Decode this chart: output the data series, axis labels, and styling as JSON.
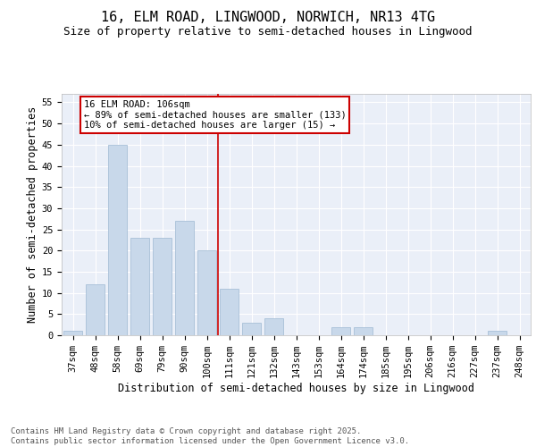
{
  "title_line1": "16, ELM ROAD, LINGWOOD, NORWICH, NR13 4TG",
  "title_line2": "Size of property relative to semi-detached houses in Lingwood",
  "xlabel": "Distribution of semi-detached houses by size in Lingwood",
  "ylabel": "Number of semi-detached properties",
  "categories": [
    "37sqm",
    "48sqm",
    "58sqm",
    "69sqm",
    "79sqm",
    "90sqm",
    "100sqm",
    "111sqm",
    "121sqm",
    "132sqm",
    "143sqm",
    "153sqm",
    "164sqm",
    "174sqm",
    "185sqm",
    "195sqm",
    "206sqm",
    "216sqm",
    "227sqm",
    "237sqm",
    "248sqm"
  ],
  "values": [
    1,
    12,
    45,
    23,
    23,
    27,
    20,
    11,
    3,
    4,
    0,
    0,
    2,
    2,
    0,
    0,
    0,
    0,
    0,
    1,
    0
  ],
  "bar_color": "#c8d8ea",
  "bar_edge_color": "#a8c0d8",
  "vline_x_index": 7,
  "vline_color": "#cc0000",
  "annotation_text": "16 ELM ROAD: 106sqm\n← 89% of semi-detached houses are smaller (133)\n10% of semi-detached houses are larger (15) →",
  "annotation_box_color": "#cc0000",
  "ylim": [
    0,
    57
  ],
  "yticks": [
    0,
    5,
    10,
    15,
    20,
    25,
    30,
    35,
    40,
    45,
    50,
    55
  ],
  "bg_color": "#eaeff8",
  "grid_color": "#ffffff",
  "footer_text": "Contains HM Land Registry data © Crown copyright and database right 2025.\nContains public sector information licensed under the Open Government Licence v3.0.",
  "title_fontsize": 11,
  "subtitle_fontsize": 9,
  "axis_label_fontsize": 8.5,
  "tick_fontsize": 7.5,
  "annotation_fontsize": 7.5,
  "footer_fontsize": 6.5
}
